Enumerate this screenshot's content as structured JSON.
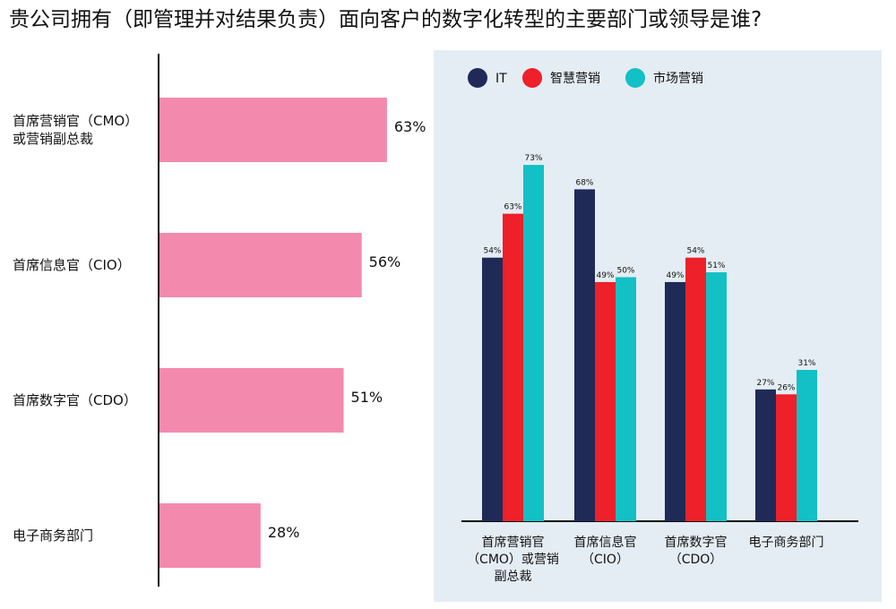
{
  "title": "贵公司拥有（即管理并对结果负责）面向客户的数字化转型的主要部门或领导是谁?",
  "chart_data": [
    {
      "type": "bar",
      "orientation": "horizontal",
      "categories": [
        [
          "首席营销官（CMO）",
          "或营销副总裁"
        ],
        [
          "首席信息官（CIO）"
        ],
        [
          "首席数字官（CDO）"
        ],
        [
          "电子商务部门"
        ]
      ],
      "values": [
        63,
        56,
        51,
        28
      ],
      "value_labels": [
        "63%",
        "56%",
        "51%",
        "28%"
      ],
      "color": "#f38aae",
      "xlim": [
        0,
        100
      ]
    },
    {
      "type": "bar",
      "orientation": "vertical",
      "background": "#e4edf3",
      "categories": [
        [
          "首席营销官",
          "（CMO）或营销",
          "副总裁"
        ],
        [
          "首席信息官",
          "（CIO）"
        ],
        [
          "首席数字官",
          "（CDO）"
        ],
        [
          "电子商务部门"
        ]
      ],
      "series": [
        {
          "name": "IT",
          "color": "#1f2a57",
          "values": [
            54,
            68,
            49,
            27
          ],
          "labels": [
            "54%",
            "68%",
            "49%",
            "27%"
          ]
        },
        {
          "name": "智慧营销",
          "color": "#ee2029",
          "values": [
            63,
            49,
            54,
            26
          ],
          "labels": [
            "63%",
            "49%",
            "54%",
            "26%"
          ]
        },
        {
          "name": "市场营销",
          "color": "#12c0c5",
          "values": [
            73,
            50,
            51,
            31
          ],
          "labels": [
            "73%",
            "50%",
            "51%",
            "31%"
          ]
        }
      ],
      "legend_position": "top-left",
      "ylim": [
        0,
        100
      ]
    }
  ]
}
